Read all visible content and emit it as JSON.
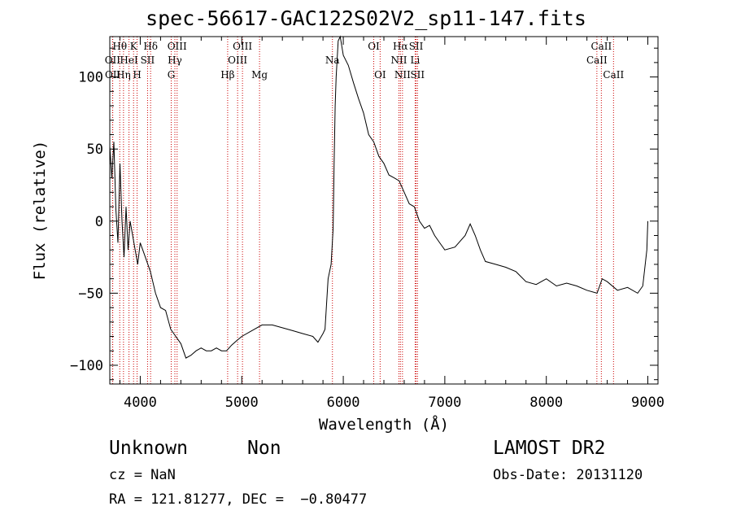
{
  "chart_data": {
    "type": "line",
    "title": "spec-56617-GAC122S02V2_sp11-147.fits",
    "xlabel": "Wavelength (Å)",
    "ylabel": "Flux (relative)",
    "xlim": [
      3700,
      9100
    ],
    "ylim": [
      -113,
      128
    ],
    "xticks": [
      4000,
      5000,
      6000,
      7000,
      8000,
      9000
    ],
    "xtick_labels": [
      "4000",
      "5000",
      "6000",
      "7000",
      "8000",
      "9000"
    ],
    "yticks": [
      -100,
      -50,
      0,
      50,
      100
    ],
    "ytick_labels": [
      "−100",
      "−50",
      "0",
      "50",
      "100"
    ],
    "grid": false,
    "series": [
      {
        "x": [
          3700,
          3720,
          3740,
          3760,
          3780,
          3800,
          3820,
          3840,
          3860,
          3880,
          3900,
          3925,
          3950,
          3975,
          4000,
          4050,
          4100,
          4150,
          4200,
          4250,
          4300,
          4350,
          4400,
          4450,
          4500,
          4550,
          4600,
          4650,
          4700,
          4750,
          4800,
          4850,
          4900,
          4950,
          5000,
          5100,
          5200,
          5300,
          5400,
          5500,
          5600,
          5700,
          5750,
          5800,
          5820,
          5850,
          5880,
          5900,
          5910,
          5920,
          5930,
          5950,
          5970,
          6000,
          6050,
          6100,
          6150,
          6200,
          6250,
          6300,
          6350,
          6400,
          6450,
          6500,
          6550,
          6600,
          6650,
          6700,
          6750,
          6800,
          6850,
          6900,
          6950,
          7000,
          7100,
          7200,
          7250,
          7300,
          7350,
          7400,
          7500,
          7600,
          7700,
          7800,
          7900,
          8000,
          8100,
          8200,
          8300,
          8400,
          8500,
          8550,
          8600,
          8700,
          8800,
          8900,
          8950,
          8990,
          9000
        ],
        "y": [
          52,
          30,
          55,
          8,
          -15,
          40,
          0,
          -25,
          10,
          -20,
          0,
          -10,
          -20,
          -30,
          -15,
          -25,
          -35,
          -50,
          -60,
          -62,
          -75,
          -80,
          -85,
          -95,
          -93,
          -90,
          -88,
          -90,
          -90,
          -88,
          -90,
          -90,
          -86,
          -83,
          -80,
          -76,
          -72,
          -72,
          -74,
          -76,
          -78,
          -80,
          -84,
          -78,
          -75,
          -40,
          -30,
          -5,
          40,
          80,
          100,
          125,
          128,
          115,
          108,
          96,
          85,
          75,
          60,
          55,
          45,
          40,
          32,
          30,
          28,
          20,
          12,
          10,
          0,
          -5,
          -3,
          -10,
          -15,
          -20,
          -18,
          -10,
          -2,
          -10,
          -20,
          -28,
          -30,
          -32,
          -35,
          -42,
          -44,
          -40,
          -45,
          -43,
          -45,
          -48,
          -50,
          -40,
          -42,
          -48,
          -46,
          -50,
          -45,
          -20,
          0
        ]
      }
    ],
    "annotations": [
      {
        "label": "Hθ",
        "x": 3798,
        "row": 0
      },
      {
        "label": "OII",
        "x": 3727,
        "row": 1
      },
      {
        "label": "OII",
        "x": 3729,
        "row": 2
      },
      {
        "label": "HeI",
        "x": 3889,
        "row": 1
      },
      {
        "label": "Hη",
        "x": 3835,
        "row": 2
      },
      {
        "label": "K",
        "x": 3934,
        "row": 0
      },
      {
        "label": "H",
        "x": 3969,
        "row": 2
      },
      {
        "label": "SII",
        "x": 4072,
        "row": 1
      },
      {
        "label": "Hδ",
        "x": 4102,
        "row": 0
      },
      {
        "label": "OIII",
        "x": 4363,
        "row": 0
      },
      {
        "label": "Hγ",
        "x": 4341,
        "row": 1
      },
      {
        "label": "G",
        "x": 4305,
        "row": 2
      },
      {
        "label": "Hβ",
        "x": 4861,
        "row": 2
      },
      {
        "label": "OIII",
        "x": 5007,
        "row": 0
      },
      {
        "label": "OIII",
        "x": 4959,
        "row": 1
      },
      {
        "label": "Mg",
        "x": 5175,
        "row": 2
      },
      {
        "label": "Na",
        "x": 5893,
        "row": 1
      },
      {
        "label": "OI",
        "x": 6300,
        "row": 0
      },
      {
        "label": "OI",
        "x": 6363,
        "row": 2
      },
      {
        "label": "Hα",
        "x": 6563,
        "row": 0
      },
      {
        "label": "SII",
        "x": 6717,
        "row": 0
      },
      {
        "label": "NII",
        "x": 6548,
        "row": 1
      },
      {
        "label": "Li",
        "x": 6708,
        "row": 1
      },
      {
        "label": "NII",
        "x": 6583,
        "row": 2
      },
      {
        "label": "SII",
        "x": 6731,
        "row": 2
      },
      {
        "label": "CaII",
        "x": 8542,
        "row": 0
      },
      {
        "label": "CaII",
        "x": 8498,
        "row": 1
      },
      {
        "label": "CaII",
        "x": 8662,
        "row": 2
      }
    ],
    "line_markers": [
      3727,
      3729,
      3798,
      3835,
      3889,
      3934,
      3969,
      4072,
      4102,
      4305,
      4341,
      4363,
      4861,
      4959,
      5007,
      5175,
      5893,
      6300,
      6363,
      6548,
      6563,
      6583,
      6708,
      6717,
      6731,
      8498,
      8542,
      8662
    ]
  },
  "info": {
    "object_class": "Unknown",
    "subclass": "Non",
    "survey": "LAMOST DR2",
    "cz": "cz = NaN",
    "obs_date": "Obs-Date: 20131120",
    "coords": "RA = 121.81277, DEC =  −0.80477"
  },
  "colors": {
    "axes": "#000000",
    "line": "#000000",
    "marker": "#cc0000"
  }
}
